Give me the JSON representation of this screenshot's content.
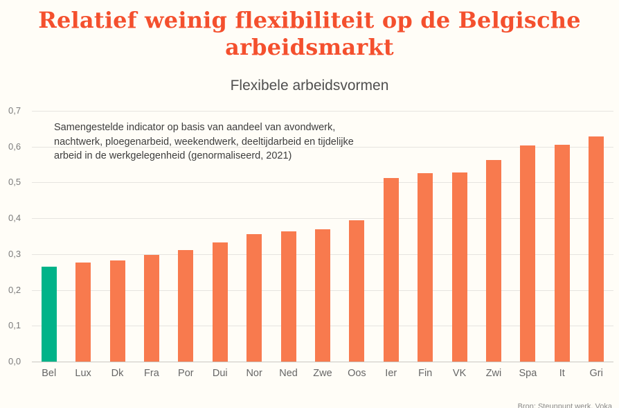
{
  "header": {
    "title": "Relatief weinig flexibiliteit op de Belgische arbeidsmarkt"
  },
  "footer": {
    "source": "Bron: Steunpunt werk, Voka"
  },
  "chart_data": {
    "type": "bar",
    "title": "Flexibele arbeidsvormen",
    "annotation": "Samengestelde indicator op basis van aandeel van avondwerk, nachtwerk, ploegenarbeid, weekendwerk, deeltijdarbeid en tijdelijke arbeid in de werkgelegenheid (genormaliseerd, 2021)",
    "categories": [
      "Bel",
      "Lux",
      "Dk",
      "Fra",
      "Por",
      "Dui",
      "Nor",
      "Ned",
      "Zwe",
      "Oos",
      "Ier",
      "Fin",
      "VK",
      "Zwi",
      "Spa",
      "It",
      "Gri"
    ],
    "values": [
      0.266,
      0.277,
      0.283,
      0.298,
      0.312,
      0.333,
      0.356,
      0.364,
      0.369,
      0.394,
      0.512,
      0.526,
      0.529,
      0.563,
      0.604,
      0.606,
      0.629
    ],
    "ylim": [
      0,
      0.7
    ],
    "y_ticks": [
      "0,0",
      "0,1",
      "0,2",
      "0,3",
      "0,4",
      "0,5",
      "0,6",
      "0,7"
    ],
    "xlabel": "",
    "ylabel": "",
    "grid": true,
    "legend": false,
    "colors": {
      "bar": "#F87A4E",
      "highlight": "#00B389",
      "highlight_category": "Bel",
      "title": "#F4502E"
    }
  }
}
